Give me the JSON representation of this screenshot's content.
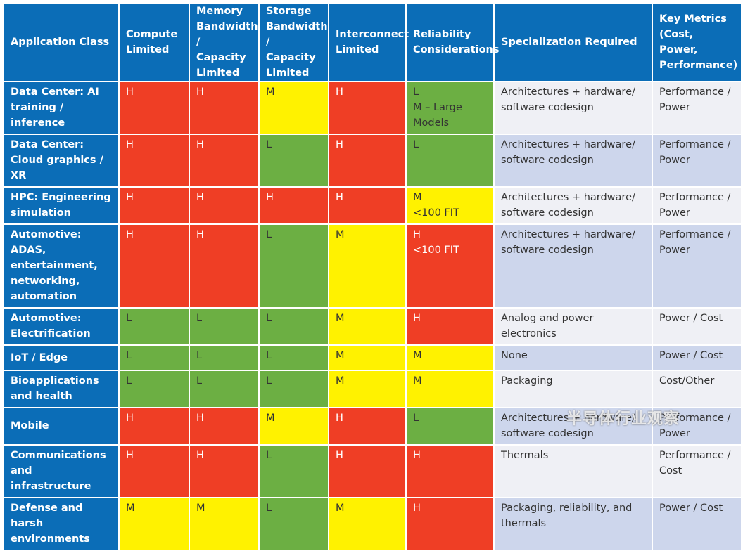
{
  "table": {
    "header": [
      "Application Class",
      "Compute Limited",
      "Memory Bandwidth / Capacity Limited",
      "Storage Bandwidth / Capacity Limited",
      "Interconnect Limited",
      "Reliability Considerations",
      "Specialization Required",
      "Key Metrics (Cost, Power, Performance)"
    ],
    "rows": [
      [
        "Data Center: AI training / inference",
        "H",
        "H",
        "M",
        "H",
        "L\nM – Large Models",
        "Architectures + hardware/ software codesign",
        "Performance / Power"
      ],
      [
        "Data Center: Cloud graphics / XR",
        "H",
        "H",
        "L",
        "H",
        "L",
        "Architectures + hardware/ software codesign",
        "Performance / Power"
      ],
      [
        "HPC: Engineering simulation",
        "H",
        "H",
        "H",
        "H",
        "M\n<100 FIT",
        "Architectures + hardware/ software codesign",
        "Performance / Power"
      ],
      [
        "Automotive: ADAS, entertainment, networking, automation",
        "H",
        "H",
        "L",
        "M",
        "H\n<100 FIT",
        "Architectures + hardware/ software codesign",
        "Performance / Power"
      ],
      [
        "Automotive: Electrification",
        "L",
        "L",
        "L",
        "M",
        "H",
        "Analog and power electronics",
        "Power / Cost"
      ],
      [
        "IoT / Edge",
        "L",
        "L",
        "L",
        "M",
        "M",
        "None",
        "Power / Cost"
      ],
      [
        "Bioapplications and health",
        "L",
        "L",
        "L",
        "M",
        "M",
        "Packaging",
        "Cost/Other"
      ],
      [
        "Mobile",
        "H",
        "H",
        "M",
        "H",
        "L",
        "Architectures + hardware/ software codesign",
        "Performance / Power"
      ],
      [
        "Communications and infrastructure",
        "H",
        "H",
        "L",
        "H",
        "H",
        "Thermals",
        "Performance / Cost"
      ],
      [
        "Defense and harsh environments",
        "M",
        "M",
        "L",
        "M",
        "H",
        "Packaging, reliability, and thermals",
        "Power / Cost"
      ]
    ],
    "watermark": "半导体行业观察"
  }
}
